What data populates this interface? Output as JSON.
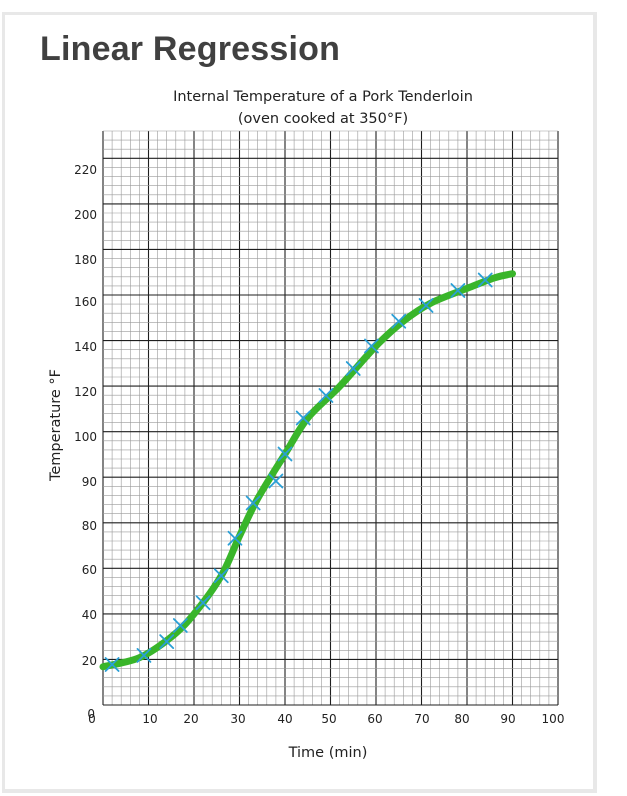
{
  "page": {
    "title": "Linear Regression"
  },
  "colors": {
    "grid_minor": "#9a9a9a",
    "grid_major": "#1f1f1f",
    "fit_line": "#39b52a",
    "data_marker": "#2a9fd6",
    "title_text": "#404040"
  },
  "chart_data": {
    "type": "scatter",
    "title": "Internal Temperature of a Pork Tenderloin",
    "subtitle": "(oven cooked at 350°F)",
    "xlabel": "Time (min)",
    "ylabel": "Temperature  °F",
    "xlim": [
      0,
      100
    ],
    "x_tick_labels": [
      "0",
      "10",
      "20",
      "30",
      "40",
      "50",
      "60",
      "70",
      "80",
      "90",
      "100"
    ],
    "y_tick_labels": [
      "20",
      "40",
      "60",
      "80",
      "90",
      "100",
      "120",
      "140",
      "160",
      "180",
      "200",
      "220"
    ],
    "y_axis_note": "tick labels are unevenly spaced as printed (80 followed by 90, then 100)",
    "grid": true,
    "marker": "x",
    "series": [
      {
        "points": [
          {
            "x": 2,
            "y": 18
          },
          {
            "x": 9,
            "y": 22
          },
          {
            "x": 14,
            "y": 28
          },
          {
            "x": 17,
            "y": 35
          },
          {
            "x": 22,
            "y": 45
          },
          {
            "x": 26,
            "y": 57
          },
          {
            "x": 29,
            "y": 74
          },
          {
            "x": 33,
            "y": 85
          },
          {
            "x": 38,
            "y": 90
          },
          {
            "x": 40,
            "y": 96
          },
          {
            "x": 44,
            "y": 108
          },
          {
            "x": 49,
            "y": 118
          },
          {
            "x": 55,
            "y": 130
          },
          {
            "x": 59,
            "y": 140
          },
          {
            "x": 65,
            "y": 151
          },
          {
            "x": 71,
            "y": 158
          },
          {
            "x": 78,
            "y": 165
          },
          {
            "x": 84,
            "y": 170
          }
        ]
      }
    ],
    "fit_line": {
      "type": "smooth curve",
      "points": [
        {
          "x": 0,
          "y": 17
        },
        {
          "x": 8,
          "y": 21
        },
        {
          "x": 15,
          "y": 30
        },
        {
          "x": 20,
          "y": 40
        },
        {
          "x": 26,
          "y": 57
        },
        {
          "x": 30,
          "y": 75
        },
        {
          "x": 34,
          "y": 86
        },
        {
          "x": 40,
          "y": 96
        },
        {
          "x": 45,
          "y": 108
        },
        {
          "x": 52,
          "y": 122
        },
        {
          "x": 60,
          "y": 140
        },
        {
          "x": 66,
          "y": 151
        },
        {
          "x": 72,
          "y": 159
        },
        {
          "x": 80,
          "y": 166
        },
        {
          "x": 86,
          "y": 171
        },
        {
          "x": 90,
          "y": 173
        }
      ]
    }
  }
}
